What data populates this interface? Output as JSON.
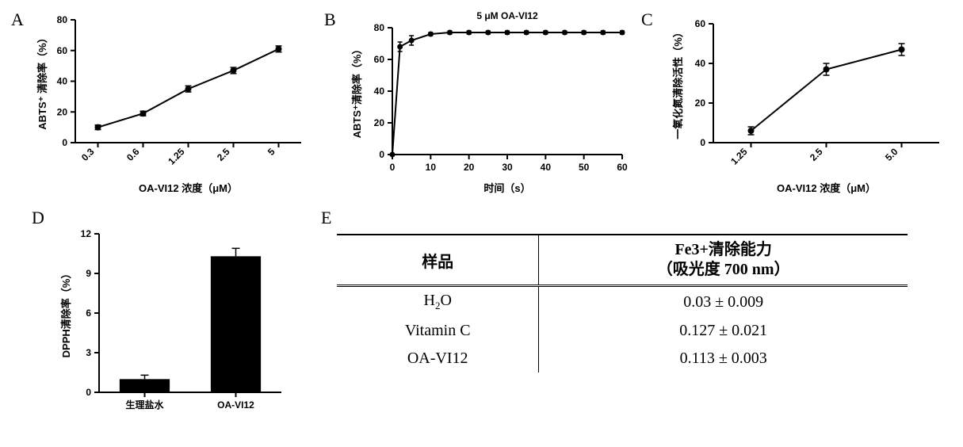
{
  "panelA": {
    "label": "A",
    "ylabel": "ABTS⁺ 清除率（%）",
    "xlabel": "OA-VI12 浓度（μM）",
    "ylim": [
      0,
      80
    ],
    "yticks": [
      0,
      20,
      40,
      60,
      80
    ],
    "categories": [
      "0.3",
      "0.6",
      "1.25",
      "2.5",
      "5"
    ],
    "values": [
      10,
      19,
      35,
      47,
      61
    ],
    "errors": [
      1.5,
      1.5,
      2,
      2,
      2
    ],
    "marker_color": "#000000",
    "line_color": "#000000"
  },
  "panelB": {
    "label": "B",
    "title": "5 μM OA-VI12",
    "ylabel": "ABTS⁺清除率（%）",
    "xlabel": "时间（s）",
    "xlim": [
      0,
      60
    ],
    "xticks": [
      0,
      10,
      20,
      30,
      40,
      50,
      60
    ],
    "ylim": [
      0,
      80
    ],
    "yticks": [
      0,
      20,
      40,
      60,
      80
    ],
    "xvals": [
      0,
      2,
      5,
      10,
      15,
      20,
      25,
      30,
      35,
      40,
      45,
      50,
      55,
      60
    ],
    "yvals": [
      0,
      68,
      72,
      76,
      77,
      77,
      77,
      77,
      77,
      77,
      77,
      77,
      77,
      77
    ],
    "errors": [
      0,
      3,
      3,
      1,
      1,
      1,
      1,
      1,
      1,
      1,
      1,
      1,
      1,
      1
    ]
  },
  "panelC": {
    "label": "C",
    "ylabel": "一氧化氮清除活性（%）",
    "xlabel": "OA-VI12 浓度（μM）",
    "ylim": [
      0,
      60
    ],
    "yticks": [
      0,
      20,
      40,
      60
    ],
    "categories": [
      "1.25",
      "2.5",
      "5.0"
    ],
    "values": [
      6,
      37,
      47
    ],
    "errors": [
      2,
      3,
      3
    ]
  },
  "panelD": {
    "label": "D",
    "ylabel": "DPPH清除率（%）",
    "ylim": [
      0,
      12
    ],
    "yticks": [
      0,
      3,
      6,
      9,
      12
    ],
    "categories": [
      "生理盐水",
      "OA-VI12"
    ],
    "values": [
      1.0,
      10.3
    ],
    "errors": [
      0.3,
      0.6
    ],
    "bar_color": "#000000"
  },
  "panelE": {
    "label": "E",
    "headers": [
      "样品",
      "Fe3+清除能力\n（吸光度 700 nm）"
    ],
    "rows": [
      [
        "H₂O",
        "0.03 ± 0.009"
      ],
      [
        "Vitamin C",
        "0.127 ± 0.021"
      ],
      [
        "OA-VI12",
        "0.113 ± 0.003"
      ]
    ]
  }
}
